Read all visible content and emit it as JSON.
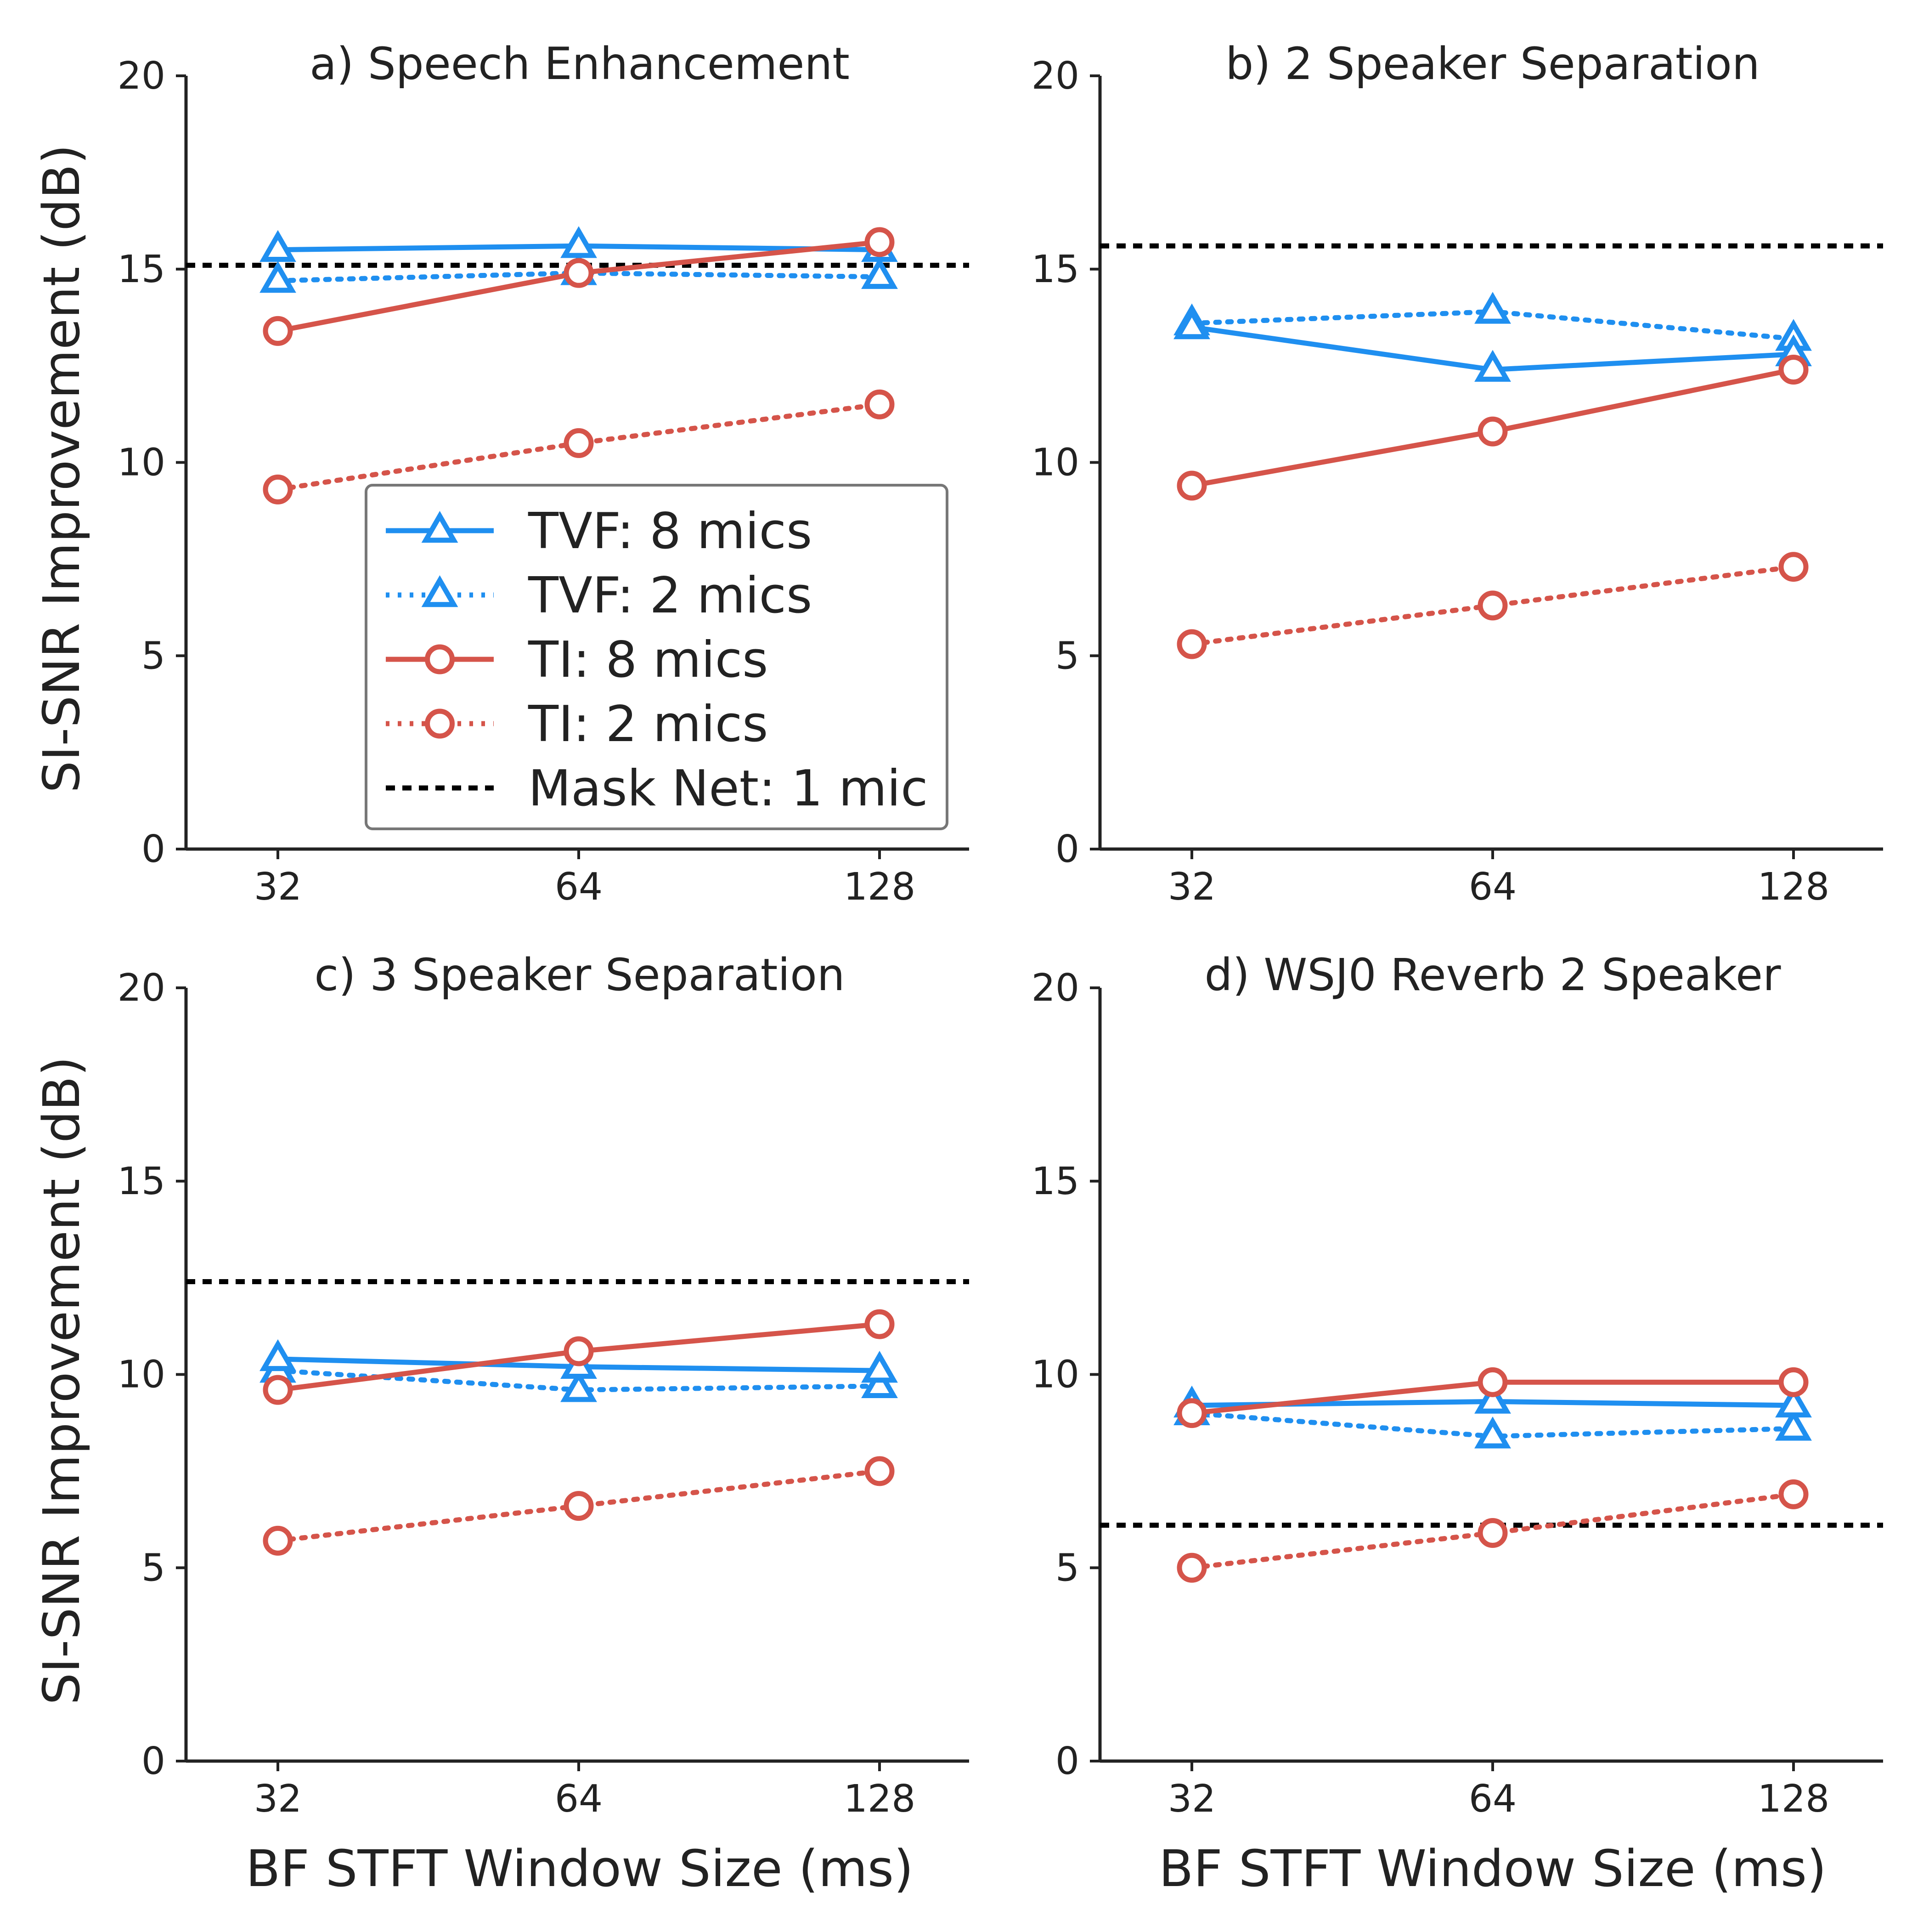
{
  "figure": {
    "ylabel": "SI-SNR Improvement (dB)",
    "xlabel": "BF STFT Window Size (ms)"
  },
  "legend": {
    "entries": [
      {
        "label": "TVF: 8 mics",
        "color": "#1f8ff0",
        "linestyle": "solid",
        "marker": "triangle"
      },
      {
        "label": "TVF: 2 mics",
        "color": "#1f8ff0",
        "linestyle": "dotted",
        "marker": "triangle"
      },
      {
        "label": "TI: 8 mics",
        "color": "#d5544a",
        "linestyle": "solid",
        "marker": "circle"
      },
      {
        "label": "TI: 2 mics",
        "color": "#d5544a",
        "linestyle": "dotted",
        "marker": "circle"
      },
      {
        "label": "Mask Net: 1 mic",
        "color": "#000000",
        "linestyle": "dashed",
        "marker": "none"
      }
    ],
    "placement": "center (panel a)"
  },
  "chart_data": [
    {
      "type": "line",
      "title": "a) Speech Enhancement",
      "x": [
        32,
        64,
        128
      ],
      "xticks": [
        "32",
        "64",
        "128"
      ],
      "ylim": [
        0,
        20
      ],
      "yticks": [
        0,
        5,
        10,
        15,
        20
      ],
      "grid": false,
      "series": [
        {
          "name": "TVF: 8 mics",
          "values": [
            15.5,
            15.6,
            15.5
          ]
        },
        {
          "name": "TVF: 2 mics",
          "values": [
            14.7,
            14.9,
            14.8
          ]
        },
        {
          "name": "TI: 8 mics",
          "values": [
            13.4,
            14.9,
            15.7
          ]
        },
        {
          "name": "TI: 2 mics",
          "values": [
            9.3,
            10.5,
            11.5
          ]
        }
      ],
      "baseline": {
        "name": "Mask Net: 1 mic",
        "value": 15.1
      }
    },
    {
      "type": "line",
      "title": "b) 2 Speaker Separation",
      "x": [
        32,
        64,
        128
      ],
      "xticks": [
        "32",
        "64",
        "128"
      ],
      "ylim": [
        0,
        20
      ],
      "yticks": [
        0,
        5,
        10,
        15,
        20
      ],
      "grid": false,
      "series": [
        {
          "name": "TVF: 8 mics",
          "values": [
            13.5,
            12.4,
            12.8
          ]
        },
        {
          "name": "TVF: 2 mics",
          "values": [
            13.6,
            13.9,
            13.2
          ]
        },
        {
          "name": "TI: 8 mics",
          "values": [
            9.4,
            10.8,
            12.4
          ]
        },
        {
          "name": "TI: 2 mics",
          "values": [
            5.3,
            6.3,
            7.3
          ]
        }
      ],
      "baseline": {
        "name": "Mask Net: 1 mic",
        "value": 15.6
      }
    },
    {
      "type": "line",
      "title": "c) 3 Speaker Separation",
      "x": [
        32,
        64,
        128
      ],
      "xticks": [
        "32",
        "64",
        "128"
      ],
      "ylim": [
        0,
        20
      ],
      "yticks": [
        0,
        5,
        10,
        15,
        20
      ],
      "grid": false,
      "series": [
        {
          "name": "TVF: 8 mics",
          "values": [
            10.4,
            10.2,
            10.1
          ]
        },
        {
          "name": "TVF: 2 mics",
          "values": [
            10.1,
            9.6,
            9.7
          ]
        },
        {
          "name": "TI: 8 mics",
          "values": [
            9.6,
            10.6,
            11.3
          ]
        },
        {
          "name": "TI: 2 mics",
          "values": [
            5.7,
            6.6,
            7.5
          ]
        }
      ],
      "baseline": {
        "name": "Mask Net: 1 mic",
        "value": 12.4
      }
    },
    {
      "type": "line",
      "title": "d) WSJ0 Reverb 2 Speaker",
      "x": [
        32,
        64,
        128
      ],
      "xticks": [
        "32",
        "64",
        "128"
      ],
      "ylim": [
        0,
        20
      ],
      "yticks": [
        0,
        5,
        10,
        15,
        20
      ],
      "grid": false,
      "series": [
        {
          "name": "TVF: 8 mics",
          "values": [
            9.2,
            9.3,
            9.2
          ]
        },
        {
          "name": "TVF: 2 mics",
          "values": [
            9.0,
            8.4,
            8.6
          ]
        },
        {
          "name": "TI: 8 mics",
          "values": [
            9.0,
            9.8,
            9.8
          ]
        },
        {
          "name": "TI: 2 mics",
          "values": [
            5.0,
            5.9,
            6.9
          ]
        }
      ],
      "baseline": {
        "name": "Mask Net: 1 mic",
        "value": 6.1
      }
    }
  ]
}
